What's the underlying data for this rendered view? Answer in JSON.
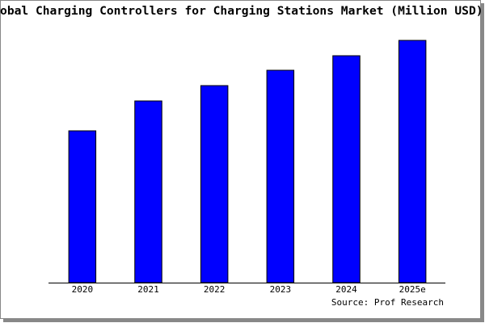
{
  "chart_data": {
    "type": "bar",
    "title": "Global Charging Controllers for Charging Stations Market (Million USD)",
    "categories": [
      "2020",
      "2021",
      "2022",
      "2023",
      "2024",
      "2025e"
    ],
    "values": [
      188,
      225,
      244,
      263,
      281,
      300
    ],
    "color": "#0000ff",
    "ylim": [
      0,
      300
    ],
    "source": "Source: Prof Research"
  }
}
